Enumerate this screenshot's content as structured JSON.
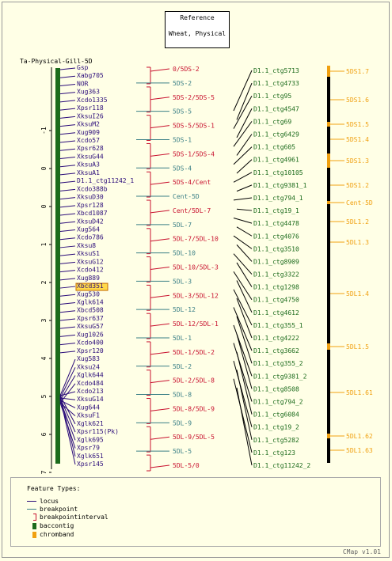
{
  "header": {
    "title_line1": "Reference",
    "title_line2": "Wheat, Physical"
  },
  "map_title": "Ta-Physical-Gill-5D",
  "colors": {
    "locus": "#2b0c7a",
    "breakpoint": "#3a7f86",
    "interval": "#c8102e",
    "contig": "#1c6b1c",
    "band": "#f0a010",
    "chrom": "#000000"
  },
  "axis_ticks": [
    "-1",
    "0",
    "0",
    "1",
    "2",
    "3",
    "4",
    "5",
    "6",
    "7"
  ],
  "loci": [
    "Gsp",
    "Xabg705",
    "NOR",
    "Xug363",
    "Xcdo1335",
    "Xpsr118",
    "XksuI26",
    "XksuM2",
    "Xug909",
    "Xcdo57",
    "Xpsr628",
    "XksuG44",
    "XksuA3",
    "XksuA1",
    "D1.1_ctg11242_1",
    "Xcdo388b",
    "XksuD30",
    "Xpsr128",
    "Xbcd1087",
    "XksuD42",
    "Xug564",
    "Xcdo786",
    "Xksu8",
    "XksuS1",
    "XksuG12",
    "Xcdo412",
    "Xug889",
    "Xbcd351",
    "Xug530",
    "Xglk614",
    "Xbcd508",
    "Xpsr637",
    "XksuG57",
    "Xug1026",
    "Xcdo400",
    "Xpsr120",
    "Xug583",
    "Xksu24",
    "Xglk644",
    "Xcdo484",
    "Xcdo213",
    "XksuG14",
    "Xug644",
    "XksuF1",
    "Xglk621",
    "Xpsr115(Pk)",
    "Xglk695",
    "Xpsr79",
    "Xglk651",
    "Xpsr145"
  ],
  "highlighted_locus": "Xbcd351",
  "intervals": [
    {
      "label": "0/5DS-2",
      "kind": "interval"
    },
    {
      "label": "5DS-2",
      "kind": "breakpoint"
    },
    {
      "label": "5DS-2/5DS-5",
      "kind": "interval"
    },
    {
      "label": "5DS-5",
      "kind": "breakpoint"
    },
    {
      "label": "5DS-5/5DS-1",
      "kind": "interval"
    },
    {
      "label": "5DS-1",
      "kind": "breakpoint"
    },
    {
      "label": "5DS-1/5DS-4",
      "kind": "interval"
    },
    {
      "label": "5DS-4",
      "kind": "breakpoint"
    },
    {
      "label": "5DS-4/Cent",
      "kind": "interval"
    },
    {
      "label": "Cent-5D",
      "kind": "breakpoint"
    },
    {
      "label": "Cent/5DL-7",
      "kind": "interval"
    },
    {
      "label": "5DL-7",
      "kind": "breakpoint"
    },
    {
      "label": "5DL-7/5DL-10",
      "kind": "interval"
    },
    {
      "label": "5DL-10",
      "kind": "breakpoint"
    },
    {
      "label": "5DL-10/5DL-3",
      "kind": "interval"
    },
    {
      "label": "5DL-3",
      "kind": "breakpoint"
    },
    {
      "label": "5DL-3/5DL-12",
      "kind": "interval"
    },
    {
      "label": "5DL-12",
      "kind": "breakpoint"
    },
    {
      "label": "5DL-12/5DL-1",
      "kind": "interval"
    },
    {
      "label": "5DL-1",
      "kind": "breakpoint"
    },
    {
      "label": "5DL-1/5DL-2",
      "kind": "interval"
    },
    {
      "label": "5DL-2",
      "kind": "breakpoint"
    },
    {
      "label": "5DL-2/5DL-8",
      "kind": "interval"
    },
    {
      "label": "5DL-8",
      "kind": "breakpoint"
    },
    {
      "label": "5DL-8/5DL-9",
      "kind": "interval"
    },
    {
      "label": "5DL-9",
      "kind": "breakpoint"
    },
    {
      "label": "5DL-9/5DL-5",
      "kind": "interval"
    },
    {
      "label": "5DL-5",
      "kind": "breakpoint"
    },
    {
      "label": "5DL-5/0",
      "kind": "interval"
    }
  ],
  "contigs": [
    "D1.1_ctg5713",
    "D1.1_ctg4733",
    "D1.1_ctg95",
    "D1.1_ctg4547",
    "D1.1_ctg69",
    "D1.1_ctg6429",
    "D1.1_ctg605",
    "D1.1_ctg4961",
    "D1.1_ctg10105",
    "D1.1_ctg9381_1",
    "D1.1_ctg794_1",
    "D1.1_ctg19_1",
    "D1.1_ctg4478",
    "D1.1_ctg4076",
    "D1.1_ctg3510",
    "D1.1_ctg8909",
    "D1.1_ctg3322",
    "D1.1_ctg1298",
    "D1.1_ctg4750",
    "D1.1_ctg4612",
    "D1.1_ctg355_1",
    "D1.1_ctg4222",
    "D1.1_ctg3662",
    "D1.1_ctg355_2",
    "D1.1_ctg9381_2",
    "D1.1_ctg8508",
    "D1.1_ctg794_2",
    "D1.1_ctg6084",
    "D1.1_ctg19_2",
    "D1.1_ctg5282",
    "D1.1_ctg123",
    "D1.1_ctg11242_2"
  ],
  "bands": [
    "5DS1.7",
    "5DS1.6",
    "5DS1.5",
    "5DS1.4",
    "5DS1.3",
    "5DS1.2",
    "Cent-5D",
    "5DL1.2",
    "5DL1.3",
    "5DL1.4",
    "5DL1.5",
    "5DL1.61",
    "5DL1.62",
    "5DL1.63"
  ],
  "legend": {
    "title": "Feature Types:",
    "items": [
      {
        "label": "locus",
        "kind": "line",
        "color": "#2b0c7a"
      },
      {
        "label": "breakpoint",
        "kind": "line",
        "color": "#3a7f86"
      },
      {
        "label": "breakpointinterval",
        "kind": "bracket",
        "color": "#c8102e"
      },
      {
        "label": "baccontig",
        "kind": "box",
        "color": "#1c6b1c"
      },
      {
        "label": "chromband",
        "kind": "box",
        "color": "#f0a010"
      }
    ]
  },
  "footer": "CMap v1.01"
}
